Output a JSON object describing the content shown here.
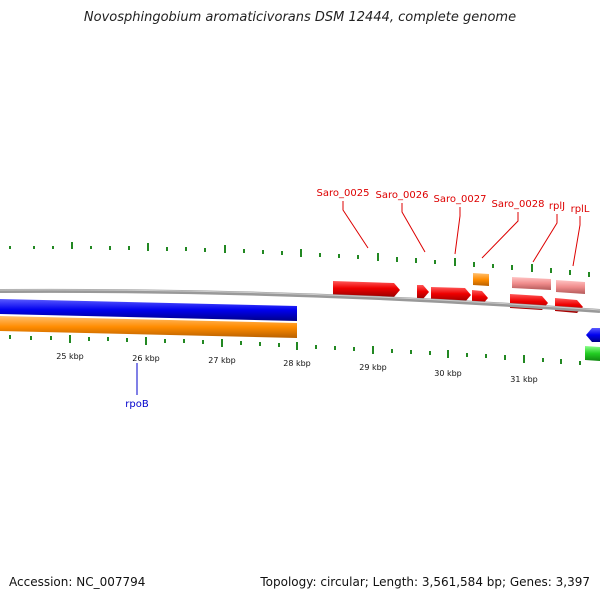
{
  "title": "Novosphingobium aromaticivorans DSM 12444, complete genome",
  "footer": {
    "accession": "Accession: NC_007794",
    "summary": "Topology: circular; Length: 3,561,584 bp; Genes: 3,397"
  },
  "axis": {
    "unit": "kbp",
    "ticks": [
      "25 kbp",
      "26 kbp",
      "27 kbp",
      "28 kbp",
      "29 kbp",
      "30 kbp",
      "31 kbp"
    ]
  },
  "gene_labels": {
    "saro_0025": "Saro_0025",
    "saro_0026": "Saro_0026",
    "saro_0027": "Saro_0027",
    "saro_0028": "Saro_0028",
    "rplJ": "rplJ",
    "rplL": "rplL",
    "rpoB": "rpoB"
  },
  "colors": {
    "forward_cds": "#ee0000",
    "forward_rrna": "#f08c8c",
    "orange": "#ff8c00",
    "blue": "#0000ee",
    "green": "#22cc22",
    "backbone": "#888888",
    "tick": "#228822",
    "label_red": "#dd0000",
    "label_blue": "#0000cc"
  }
}
